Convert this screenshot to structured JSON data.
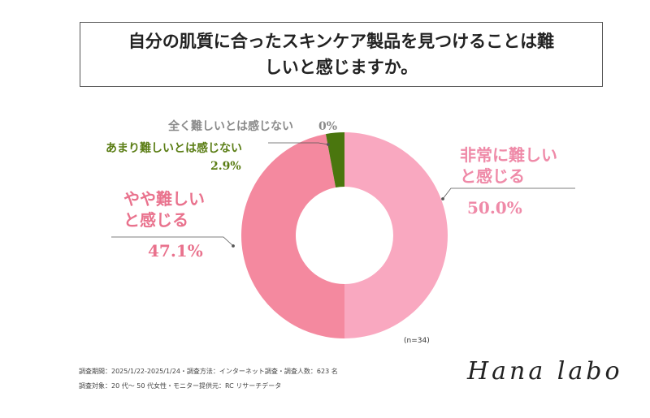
{
  "chart_data": {
    "type": "donut",
    "title": "自分の肌質に合ったスキンケア製品を見つけることは難しいと感じますか。",
    "categories": [
      "非常に難しいと感じる",
      "やや難しいと感じる",
      "あまり難しいとは感じない",
      "全く難しいとは感じない"
    ],
    "values": [
      50.0,
      47.1,
      2.9,
      0
    ],
    "value_labels": [
      "50.0%",
      "47.1%",
      "2.9%",
      "0%"
    ],
    "colors": [
      "#f9a8c0",
      "#f4899f",
      "#4a760e",
      "#999999"
    ],
    "label_colors": [
      "#ef8aa8",
      "#e9728d",
      "#5a7d14",
      "#8a8a8a"
    ],
    "note": "(n=34)"
  },
  "footer": {
    "notes": [
      "調査期間：2025/1/22-2025/1/24・調査方法：インターネット調査・調査人数：623 名",
      "調査対象：20 代〜 50 代女性・モニター提供元：RC リサーチデータ"
    ],
    "logo": "Hana labo"
  }
}
